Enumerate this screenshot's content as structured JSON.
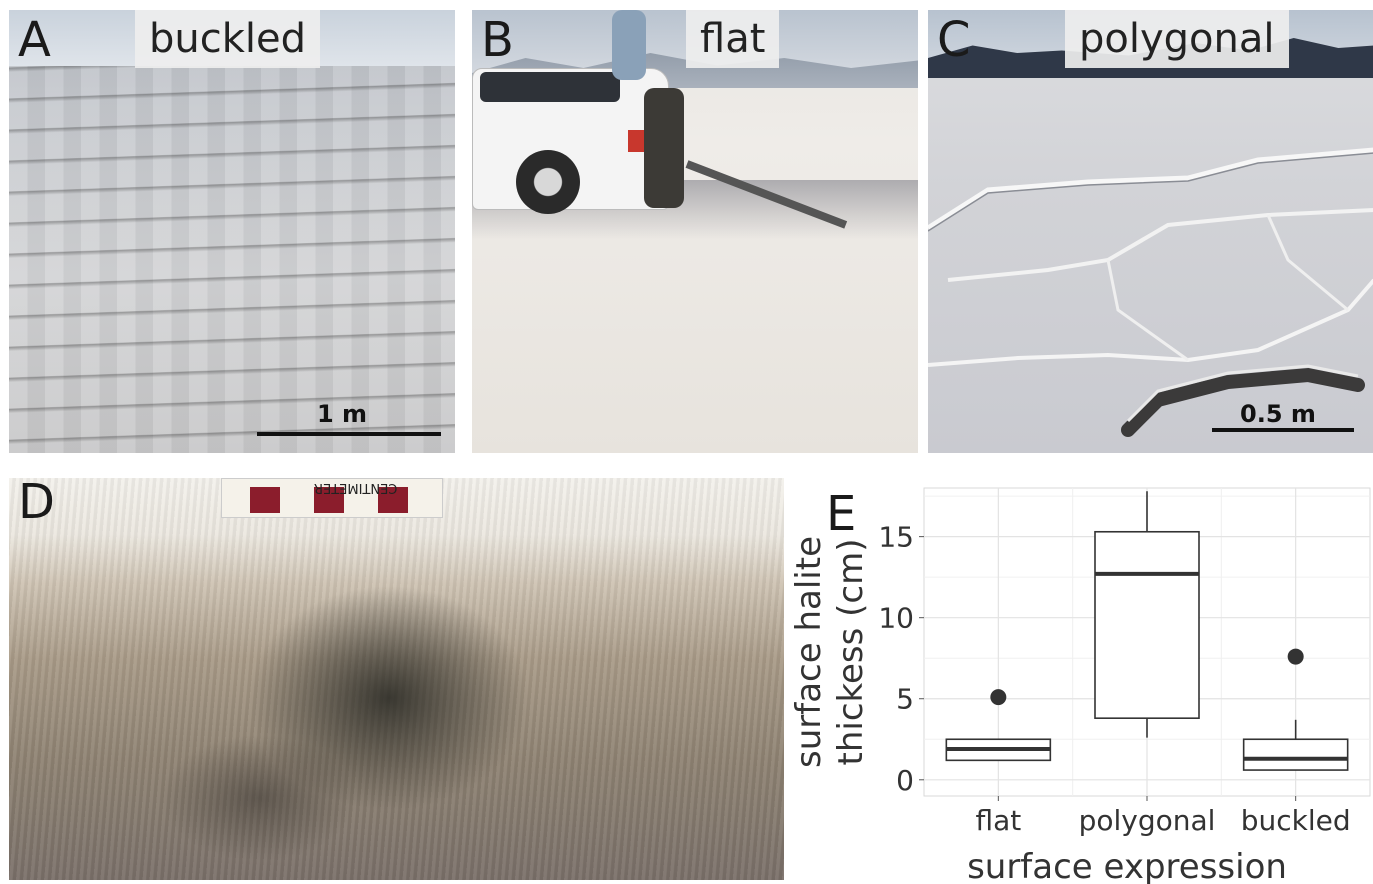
{
  "panels": {
    "A": {
      "letter": "A",
      "label": "buckled",
      "scale": "1 m"
    },
    "B": {
      "letter": "B",
      "label": "flat"
    },
    "C": {
      "letter": "C",
      "label": "polygonal",
      "scale": "0.5 m"
    },
    "D": {
      "letter": "D",
      "ruler_text": "CENTIMETER"
    },
    "E": {
      "letter": "E"
    }
  },
  "chart_data": {
    "type": "boxplot",
    "xlabel": "surface expression",
    "ylabel_line1": "surface halite",
    "ylabel_line2": "thickess (cm)",
    "ylim": [
      -1,
      18
    ],
    "yticks": [
      0,
      5,
      10,
      15
    ],
    "grid": true,
    "categories": [
      "flat",
      "polygonal",
      "buckled"
    ],
    "boxes": [
      {
        "category": "flat",
        "whisker_low": 1.2,
        "q1": 1.2,
        "median": 1.9,
        "q3": 2.5,
        "whisker_high": 2.5,
        "outliers": [
          5.1
        ]
      },
      {
        "category": "polygonal",
        "whisker_low": 2.6,
        "q1": 3.8,
        "median": 12.7,
        "q3": 15.3,
        "whisker_high": 17.8,
        "outliers": []
      },
      {
        "category": "buckled",
        "whisker_low": 0.6,
        "q1": 0.6,
        "median": 1.3,
        "q3": 2.5,
        "whisker_high": 3.7,
        "outliers": [
          7.6
        ]
      }
    ]
  }
}
